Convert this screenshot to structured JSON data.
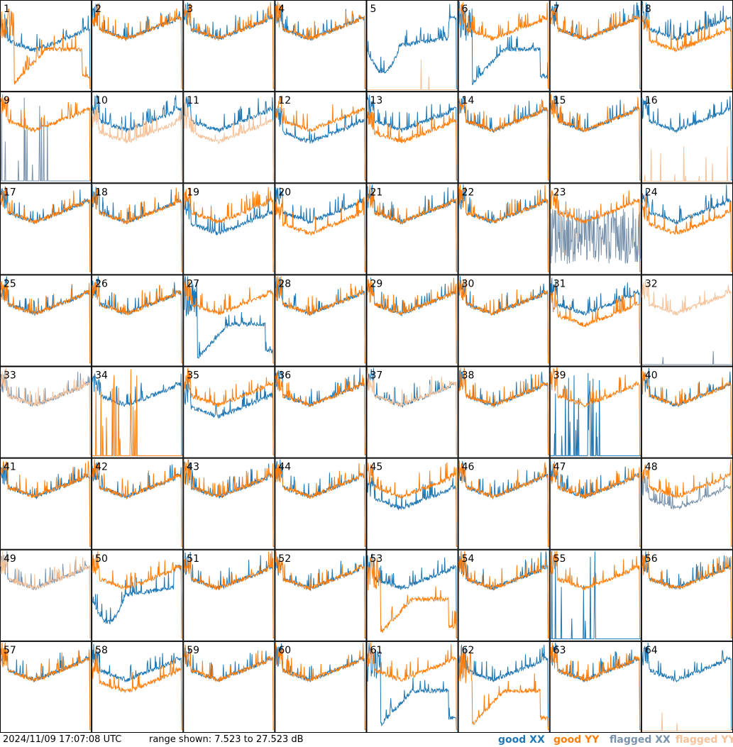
{
  "colors": {
    "good_xx": "#1f77b4",
    "good_yy": "#ff7f0e",
    "flagged_xx": "#7a93ad",
    "flagged_yy": "#f5c29a"
  },
  "footer": {
    "timestamp": "2024/11/09 17:07:08 UTC",
    "range_text": "range shown: 7.523 to 27.523 dB"
  },
  "legend": [
    {
      "label": "good XX",
      "color_key": "good_xx"
    },
    {
      "label": "good YY",
      "color_key": "good_yy"
    },
    {
      "label": "flagged XX",
      "color_key": "flagged_xx"
    },
    {
      "label": "flagged YY",
      "color_key": "flagged_yy"
    }
  ],
  "chart_data": {
    "type": "line",
    "grid": "8x8 small multiples",
    "y_range_db": [
      7.523,
      27.523
    ],
    "series_names": [
      "good XX",
      "good YY",
      "flagged XX",
      "flagged YY"
    ],
    "panels": [
      {
        "id": "1",
        "xx": "shift_low",
        "yy": "dip_deep",
        "xx_flag": false,
        "yy_flag": false
      },
      {
        "id": "2",
        "xx": "normal",
        "yy": "normal",
        "xx_flag": false,
        "yy_flag": false
      },
      {
        "id": "3",
        "xx": "normal",
        "yy": "normal",
        "xx_flag": false,
        "yy_flag": false
      },
      {
        "id": "4",
        "xx": "normal",
        "yy": "normal",
        "xx_flag": false,
        "yy_flag": false
      },
      {
        "id": "5",
        "xx": "dip",
        "yy": "dead",
        "xx_flag": false,
        "yy_flag": true
      },
      {
        "id": "6",
        "xx": "dip_deep",
        "yy": "normal",
        "xx_flag": false,
        "yy_flag": false
      },
      {
        "id": "7",
        "xx": "normal",
        "yy": "normal",
        "xx_flag": false,
        "yy_flag": false
      },
      {
        "id": "8",
        "xx": "normal",
        "yy": "shift_low",
        "xx_flag": false,
        "yy_flag": false
      },
      {
        "id": "9",
        "xx": "spiky_dead",
        "yy": "normal",
        "xx_flag": true,
        "yy_flag": false
      },
      {
        "id": "10",
        "xx": "normal",
        "yy": "shift_low",
        "xx_flag": false,
        "yy_flag": true
      },
      {
        "id": "11",
        "xx": "normal",
        "yy": "shift_low",
        "xx_flag": false,
        "yy_flag": true
      },
      {
        "id": "12",
        "xx": "shift_low",
        "yy": "normal",
        "xx_flag": false,
        "yy_flag": false
      },
      {
        "id": "13",
        "xx": "normal",
        "yy": "shift_low",
        "xx_flag": false,
        "yy_flag": false
      },
      {
        "id": "14",
        "xx": "normal",
        "yy": "normal",
        "xx_flag": false,
        "yy_flag": false
      },
      {
        "id": "15",
        "xx": "normal",
        "yy": "normal",
        "xx_flag": false,
        "yy_flag": false
      },
      {
        "id": "16",
        "xx": "normal",
        "yy": "dead",
        "xx_flag": false,
        "yy_flag": true
      },
      {
        "id": "17",
        "xx": "normal",
        "yy": "normal",
        "xx_flag": false,
        "yy_flag": false
      },
      {
        "id": "18",
        "xx": "normal",
        "yy": "normal",
        "xx_flag": false,
        "yy_flag": false
      },
      {
        "id": "19",
        "xx": "shift_low",
        "yy": "normal",
        "xx_flag": false,
        "yy_flag": false
      },
      {
        "id": "20",
        "xx": "normal",
        "yy": "shift_low",
        "xx_flag": false,
        "yy_flag": false
      },
      {
        "id": "21",
        "xx": "normal",
        "yy": "normal",
        "xx_flag": false,
        "yy_flag": false
      },
      {
        "id": "22",
        "xx": "normal",
        "yy": "normal",
        "xx_flag": false,
        "yy_flag": false
      },
      {
        "id": "23",
        "xx": "noisy",
        "yy": "normal",
        "xx_flag": true,
        "yy_flag": false
      },
      {
        "id": "24",
        "xx": "normal",
        "yy": "shift_low",
        "xx_flag": false,
        "yy_flag": false
      },
      {
        "id": "25",
        "xx": "normal",
        "yy": "normal",
        "xx_flag": false,
        "yy_flag": false
      },
      {
        "id": "26",
        "xx": "normal",
        "yy": "normal",
        "xx_flag": false,
        "yy_flag": false
      },
      {
        "id": "27",
        "xx": "dip_deep",
        "yy": "normal",
        "xx_flag": false,
        "yy_flag": false
      },
      {
        "id": "28",
        "xx": "normal",
        "yy": "normal",
        "xx_flag": false,
        "yy_flag": false
      },
      {
        "id": "29",
        "xx": "normal",
        "yy": "normal",
        "xx_flag": false,
        "yy_flag": false
      },
      {
        "id": "30",
        "xx": "normal",
        "yy": "normal",
        "xx_flag": false,
        "yy_flag": false
      },
      {
        "id": "31",
        "xx": "normal",
        "yy": "shift_low",
        "xx_flag": false,
        "yy_flag": false
      },
      {
        "id": "32",
        "xx": "dead",
        "yy": "normal",
        "xx_flag": true,
        "yy_flag": true
      },
      {
        "id": "33",
        "xx": "normal",
        "yy": "normal",
        "xx_flag": true,
        "yy_flag": true
      },
      {
        "id": "34",
        "xx": "normal",
        "yy": "spiky_dead",
        "xx_flag": false,
        "yy_flag": false
      },
      {
        "id": "35",
        "xx": "shift_low",
        "yy": "normal",
        "xx_flag": false,
        "yy_flag": false
      },
      {
        "id": "36",
        "xx": "normal",
        "yy": "normal",
        "xx_flag": false,
        "yy_flag": false
      },
      {
        "id": "37",
        "xx": "normal",
        "yy": "normal",
        "xx_flag": false,
        "yy_flag": true
      },
      {
        "id": "38",
        "xx": "normal",
        "yy": "normal",
        "xx_flag": false,
        "yy_flag": false
      },
      {
        "id": "39",
        "xx": "spiky_dead",
        "yy": "normal",
        "xx_flag": false,
        "yy_flag": false
      },
      {
        "id": "40",
        "xx": "normal",
        "yy": "normal",
        "xx_flag": false,
        "yy_flag": false
      },
      {
        "id": "41",
        "xx": "normal",
        "yy": "normal",
        "xx_flag": false,
        "yy_flag": false
      },
      {
        "id": "42",
        "xx": "normal",
        "yy": "normal",
        "xx_flag": false,
        "yy_flag": false
      },
      {
        "id": "43",
        "xx": "normal",
        "yy": "normal",
        "xx_flag": false,
        "yy_flag": false
      },
      {
        "id": "44",
        "xx": "normal",
        "yy": "normal",
        "xx_flag": false,
        "yy_flag": false
      },
      {
        "id": "45",
        "xx": "shift_low",
        "yy": "normal",
        "xx_flag": false,
        "yy_flag": false
      },
      {
        "id": "46",
        "xx": "normal",
        "yy": "normal",
        "xx_flag": false,
        "yy_flag": false
      },
      {
        "id": "47",
        "xx": "normal",
        "yy": "normal",
        "xx_flag": false,
        "yy_flag": false
      },
      {
        "id": "48",
        "xx": "shift_low",
        "yy": "normal",
        "xx_flag": true,
        "yy_flag": false
      },
      {
        "id": "49",
        "xx": "normal",
        "yy": "normal",
        "xx_flag": true,
        "yy_flag": true
      },
      {
        "id": "50",
        "xx": "dip",
        "yy": "normal",
        "xx_flag": false,
        "yy_flag": false
      },
      {
        "id": "51",
        "xx": "normal",
        "yy": "normal",
        "xx_flag": false,
        "yy_flag": false
      },
      {
        "id": "52",
        "xx": "normal",
        "yy": "normal",
        "xx_flag": false,
        "yy_flag": false
      },
      {
        "id": "53",
        "xx": "normal",
        "yy": "dip_deep",
        "xx_flag": false,
        "yy_flag": false
      },
      {
        "id": "54",
        "xx": "normal",
        "yy": "normal",
        "xx_flag": false,
        "yy_flag": false
      },
      {
        "id": "55",
        "xx": "spiky_dead",
        "yy": "normal",
        "xx_flag": false,
        "yy_flag": false
      },
      {
        "id": "56",
        "xx": "normal",
        "yy": "normal",
        "xx_flag": false,
        "yy_flag": false
      },
      {
        "id": "57",
        "xx": "normal",
        "yy": "normal",
        "xx_flag": false,
        "yy_flag": false
      },
      {
        "id": "58",
        "xx": "normal",
        "yy": "shift_low",
        "xx_flag": false,
        "yy_flag": false
      },
      {
        "id": "59",
        "xx": "normal",
        "yy": "normal",
        "xx_flag": false,
        "yy_flag": false
      },
      {
        "id": "60",
        "xx": "normal",
        "yy": "normal",
        "xx_flag": false,
        "yy_flag": false
      },
      {
        "id": "61",
        "xx": "dip_deep",
        "yy": "normal",
        "xx_flag": false,
        "yy_flag": false
      },
      {
        "id": "62",
        "xx": "normal",
        "yy": "dip_deep",
        "xx_flag": false,
        "yy_flag": false
      },
      {
        "id": "63",
        "xx": "normal",
        "yy": "normal",
        "xx_flag": false,
        "yy_flag": false
      },
      {
        "id": "64",
        "xx": "normal",
        "yy": "dead",
        "xx_flag": false,
        "yy_flag": true
      }
    ]
  }
}
